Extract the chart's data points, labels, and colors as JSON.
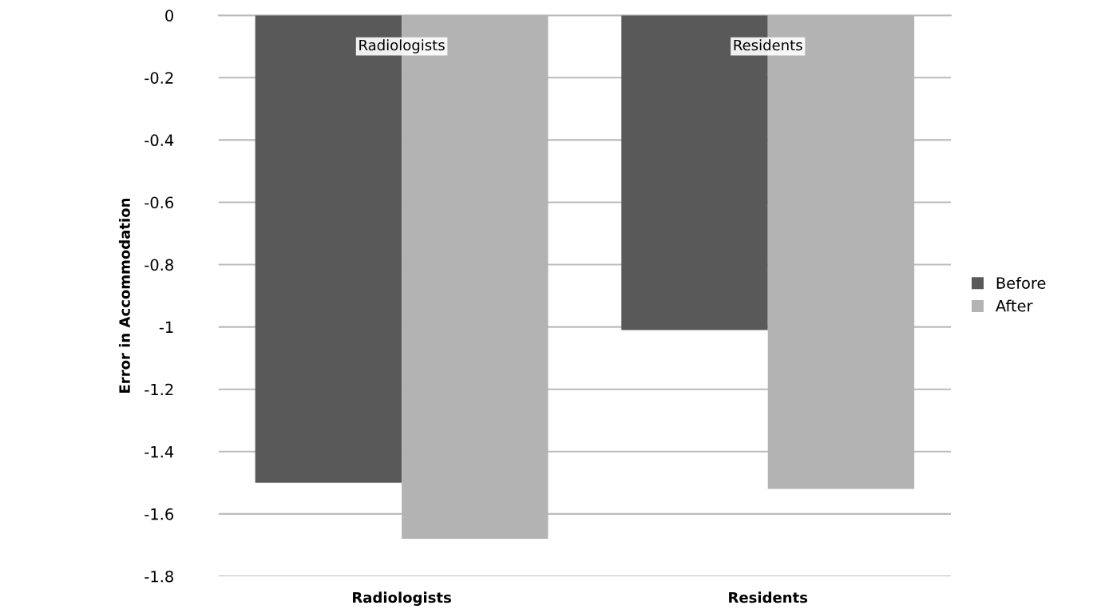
{
  "chart_data": {
    "type": "bar",
    "ylabel": "Error in Accommodation",
    "categories": [
      "Radiologists",
      "Residents"
    ],
    "series": [
      {
        "name": "Before",
        "color": "#595959",
        "values": [
          -1.5,
          -1.01
        ]
      },
      {
        "name": "After",
        "color": "#b3b3b3",
        "values": [
          -1.68,
          -1.52
        ]
      }
    ],
    "ylim": [
      -1.8,
      0
    ],
    "yticks": [
      0,
      -0.2,
      -0.4,
      -0.6,
      -0.8,
      -1,
      -1.2,
      -1.4,
      -1.6,
      -1.8
    ],
    "annotations": [
      {
        "text": "Radiologists",
        "x": "Radiologists",
        "y": 0
      },
      {
        "text": "Residents",
        "x": "Residents",
        "y": 0
      }
    ],
    "grid": "y",
    "legend": "right"
  }
}
